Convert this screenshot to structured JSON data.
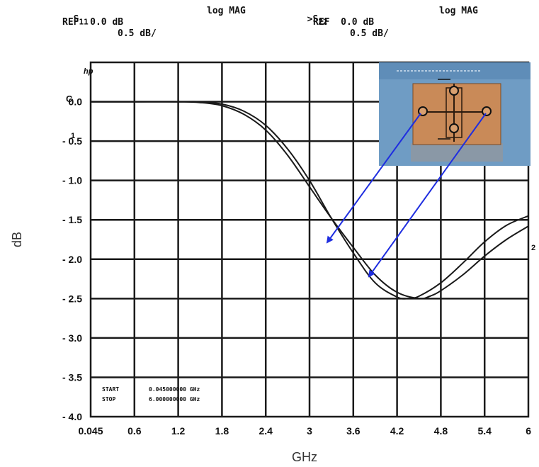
{
  "header": {
    "left_param": "S",
    "left_param_sub": "11",
    "left_format": "log MAG",
    "left_ref": "REF  0.0 dB",
    "left_scale": "0.5 dB/",
    "right_param": ">S",
    "right_param_sub": "22",
    "right_format": "log MAG",
    "right_ref": "REF  0.0 dB",
    "right_scale": "0.5 dB/"
  },
  "annotations": {
    "hp_mark": "hp",
    "c_mark": "C",
    "ref_marker": "1",
    "right_marker": "2",
    "start_label": "START",
    "start_value": "0.045000000 GHz",
    "stop_label": "STOP",
    "stop_value": "6.000000000 GHz"
  },
  "colors": {
    "grid": "#1a1a1a",
    "trace": "#1a1a1a",
    "arrow": "#1f2ee0",
    "inset_bg": "#6f9cc4",
    "inset_substrate": "#c98a58"
  },
  "chart_data": {
    "type": "line",
    "title": "",
    "xlabel": "GHz",
    "ylabel": "dB",
    "xlim": [
      0.045,
      6
    ],
    "ylim": [
      -4.0,
      0.5
    ],
    "x_ticks": [
      "0.045",
      "0.6",
      "1.2",
      "1.8",
      "2.4",
      "3",
      "3.6",
      "4.2",
      "4.8",
      "5.4",
      "6"
    ],
    "y_ticks": [
      "0.0",
      "-0.5",
      "-1.0",
      "-1.5",
      "-2.0",
      "-2.5",
      "-3.0",
      "-3.5",
      "-4.0"
    ],
    "grid": true,
    "series": [
      {
        "name": "S11",
        "x": [
          0.045,
          0.6,
          1.2,
          1.5,
          1.8,
          2.1,
          2.4,
          2.7,
          3.0,
          3.3,
          3.6,
          3.9,
          4.2,
          4.35,
          4.5,
          4.8,
          5.1,
          5.4,
          5.7,
          6.0
        ],
        "y": [
          0.0,
          0.0,
          0.0,
          0.0,
          -0.03,
          -0.12,
          -0.3,
          -0.6,
          -1.0,
          -1.48,
          -1.92,
          -2.3,
          -2.48,
          -2.5,
          -2.47,
          -2.3,
          -2.05,
          -1.78,
          -1.57,
          -1.45
        ]
      },
      {
        "name": "S22",
        "x": [
          0.045,
          0.6,
          1.2,
          1.5,
          1.8,
          2.1,
          2.4,
          2.7,
          3.0,
          3.3,
          3.6,
          3.9,
          4.2,
          4.5,
          4.65,
          4.8,
          5.1,
          5.4,
          5.7,
          6.0
        ],
        "y": [
          0.0,
          0.0,
          0.0,
          -0.01,
          -0.05,
          -0.16,
          -0.36,
          -0.68,
          -1.08,
          -1.48,
          -1.85,
          -2.2,
          -2.42,
          -2.5,
          -2.47,
          -2.4,
          -2.2,
          -1.96,
          -1.75,
          -1.58
        ]
      }
    ]
  }
}
